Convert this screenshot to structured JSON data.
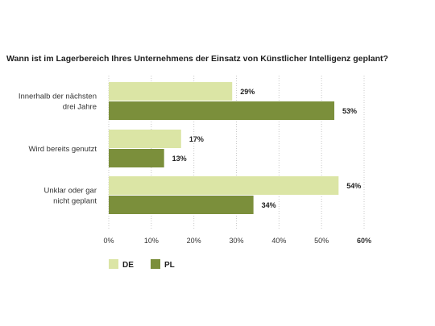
{
  "chart_data": {
    "type": "bar",
    "orientation": "horizontal",
    "title": "Wann ist im Lagerbereich Ihres Unternehmens der Einsatz von Künstlicher Intelligenz geplant?",
    "categories": [
      [
        "Innerhalb der nächsten",
        "drei Jahre"
      ],
      [
        "Wird bereits genutzt"
      ],
      [
        "Unklar oder gar",
        "nicht geplant"
      ]
    ],
    "series": [
      {
        "name": "DE",
        "color": "#dbe5a5",
        "values": [
          29,
          17,
          54
        ],
        "labels": [
          "29%",
          "17%",
          "54%"
        ]
      },
      {
        "name": "PL",
        "color": "#7b8f3b",
        "values": [
          53,
          13,
          34
        ],
        "labels": [
          "53%",
          "13%",
          "34%"
        ]
      }
    ],
    "xlim": [
      0,
      60
    ],
    "ticks": [
      0,
      10,
      20,
      30,
      40,
      50,
      60
    ],
    "tick_labels": [
      "0%",
      "10%",
      "20%",
      "30%",
      "40%",
      "50%",
      "60%"
    ],
    "grid": true,
    "legend_position": "bottom-left",
    "xlabel": "",
    "ylabel": ""
  }
}
